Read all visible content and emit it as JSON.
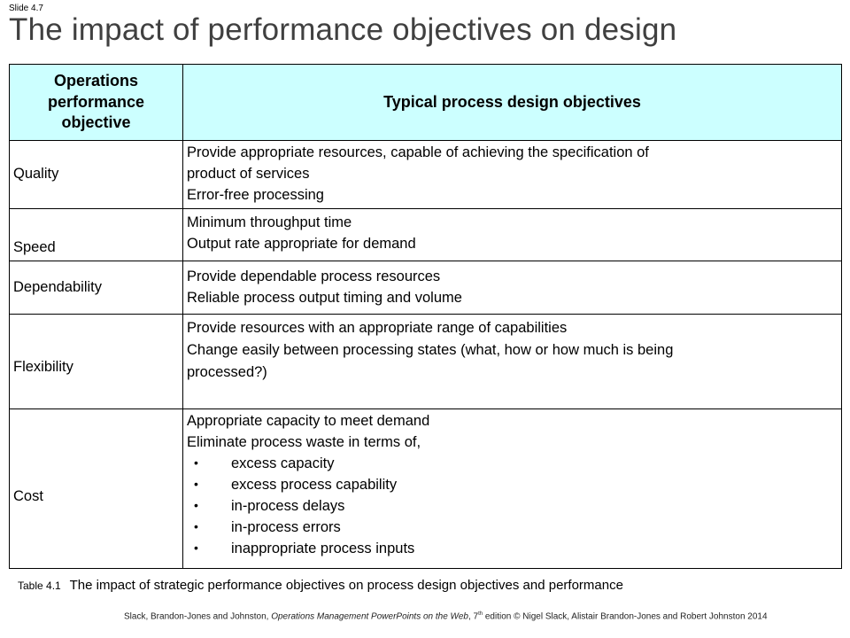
{
  "slide": {
    "label": "Slide 4.7",
    "title": "The impact of performance objectives  on design"
  },
  "table": {
    "headers": [
      "Operations performance objective",
      "Typical process design objectives"
    ],
    "rows": [
      {
        "objective": "Quality",
        "lines": [
          "Provide appropriate resources, capable of achieving the specification of",
          "product of services",
          "Error-free processing"
        ],
        "bullets": []
      },
      {
        "objective": "Speed",
        "lines": [
          "Minimum throughput time",
          "Output rate appropriate for demand"
        ],
        "bullets": []
      },
      {
        "objective": "Dependability",
        "lines": [
          "Provide dependable process resources",
          "Reliable process output timing and volume"
        ],
        "bullets": []
      },
      {
        "objective": "Flexibility",
        "lines": [
          "Provide resources with an appropriate range of capabilities",
          "Change easily between processing states (what, how or how much is being",
          "processed?)"
        ],
        "bullets": []
      },
      {
        "objective": "Cost",
        "lines": [
          "Appropriate capacity to meet demand",
          "Eliminate process waste in terms of,"
        ],
        "bullets": [
          "excess capacity",
          "excess process capability",
          "in-process delays",
          "in-process errors",
          "inappropriate process inputs"
        ]
      }
    ]
  },
  "caption": {
    "number": "Table 4.1",
    "text": "The impact of strategic performance objectives on process design objectives and performance"
  },
  "footer": {
    "authors": "Slack, Brandon-Jones and Johnston, ",
    "book": "Operations Management PowerPoints on the Web",
    "edition_num": ", 7",
    "edition_sup": "th",
    "rest": " edition © Nigel Slack, Alistair Brandon-Jones and Robert Johnston 2014"
  },
  "bullet_symbol": "•"
}
